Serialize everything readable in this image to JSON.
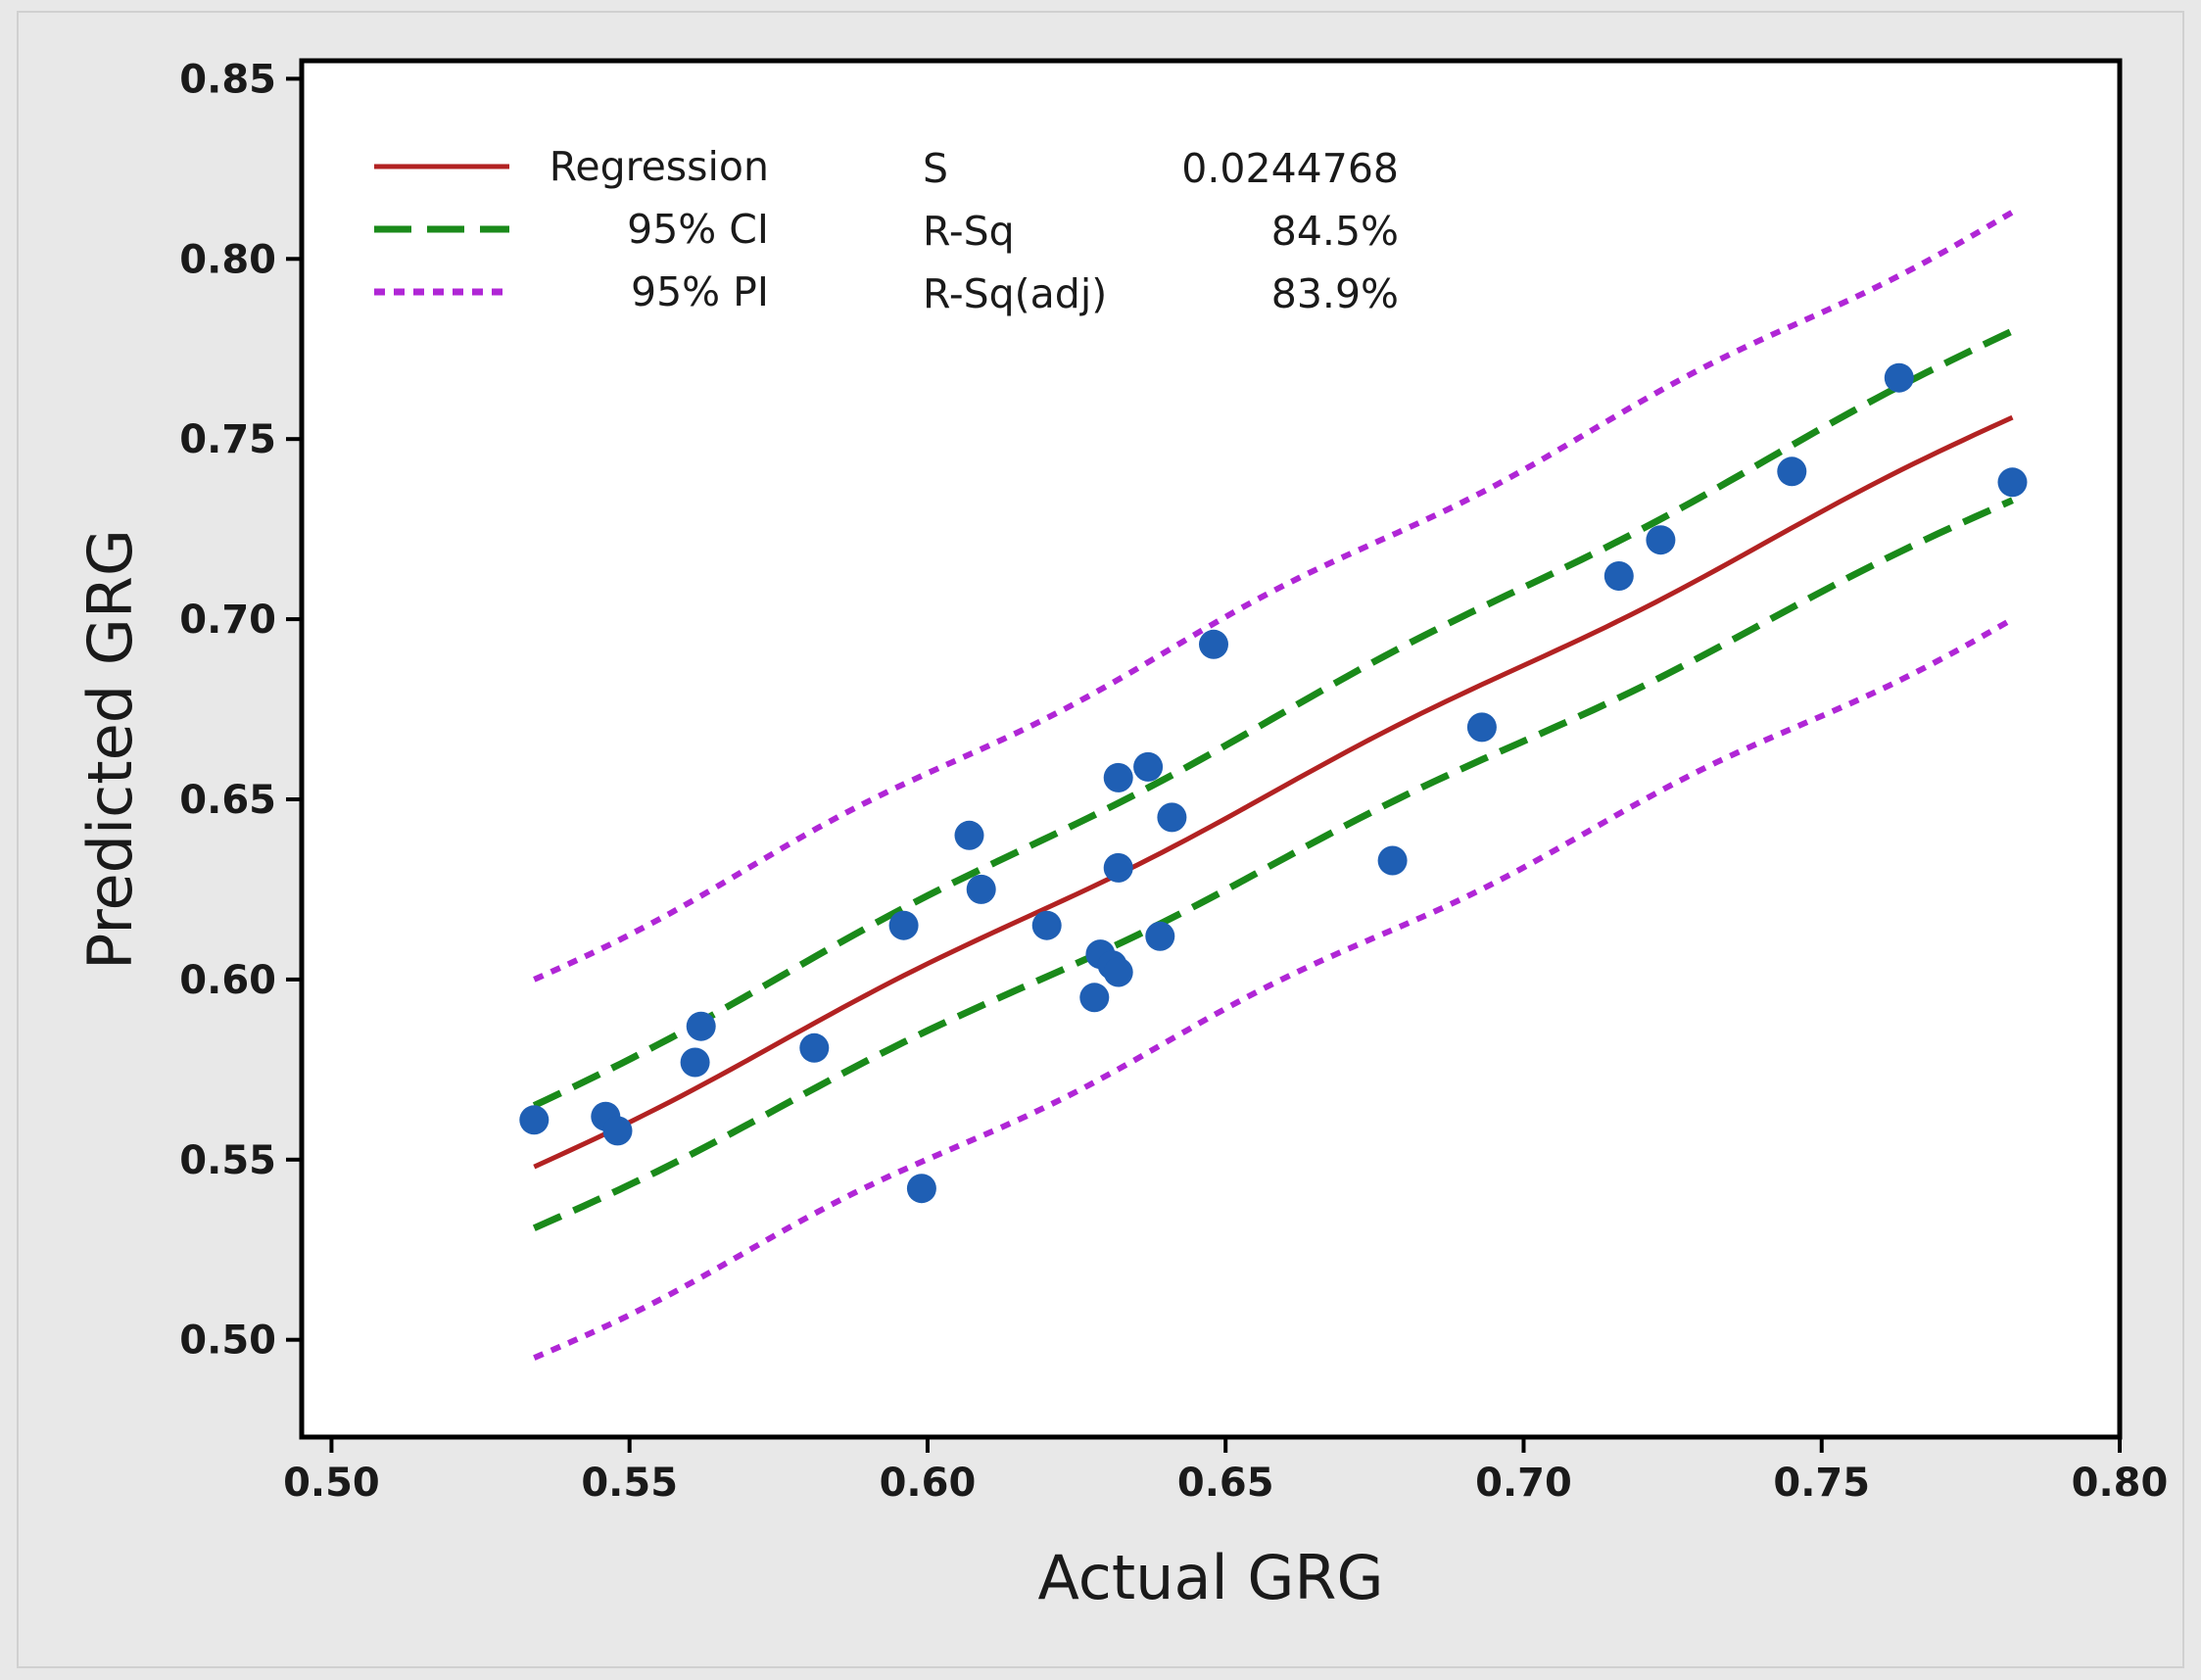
{
  "chart_data": {
    "type": "scatter",
    "xlabel": "Actual GRG",
    "ylabel": "Predicted GRG",
    "xlim": [
      0.495,
      0.8
    ],
    "ylim": [
      0.473,
      0.855
    ],
    "xticks": [
      "0.50",
      "0.55",
      "0.60",
      "0.65",
      "0.70",
      "0.75",
      "0.80"
    ],
    "yticks": [
      "0.50",
      "0.55",
      "0.60",
      "0.65",
      "0.70",
      "0.75",
      "0.80",
      "0.85"
    ],
    "colors": {
      "regression": "#b22222",
      "ci": "#1a8a1a",
      "pi": "#b026d6",
      "points": "#1f5fb4",
      "outer_bg": "#e8e8e8",
      "plot_bg": "#ffffff"
    },
    "legend": [
      {
        "key": "regression",
        "label": "Regression",
        "style": "solid"
      },
      {
        "key": "ci",
        "label": "95% CI",
        "style": "dashed"
      },
      {
        "key": "pi",
        "label": "95% PI",
        "style": "dotted"
      }
    ],
    "stats": [
      {
        "label": "S",
        "value": "0.0244768"
      },
      {
        "label": "R-Sq",
        "value": "84.5%"
      },
      {
        "label": "R-Sq(adj)",
        "value": "83.9%"
      }
    ],
    "fit": {
      "x_range": [
        0.534,
        0.782
      ],
      "regression": [
        0.548,
        0.756
      ],
      "ci_upper": [
        0.565,
        0.78
      ],
      "ci_lower": [
        0.531,
        0.733
      ],
      "pi_upper": [
        0.6,
        0.813
      ],
      "pi_lower": [
        0.495,
        0.7
      ]
    },
    "series": [
      {
        "name": "Observations",
        "points": [
          [
            0.534,
            0.561
          ],
          [
            0.546,
            0.562
          ],
          [
            0.548,
            0.558
          ],
          [
            0.561,
            0.577
          ],
          [
            0.562,
            0.587
          ],
          [
            0.581,
            0.581
          ],
          [
            0.596,
            0.615
          ],
          [
            0.599,
            0.542
          ],
          [
            0.607,
            0.64
          ],
          [
            0.609,
            0.625
          ],
          [
            0.62,
            0.615
          ],
          [
            0.628,
            0.595
          ],
          [
            0.629,
            0.607
          ],
          [
            0.631,
            0.604
          ],
          [
            0.632,
            0.602
          ],
          [
            0.632,
            0.631
          ],
          [
            0.632,
            0.656
          ],
          [
            0.637,
            0.659
          ],
          [
            0.639,
            0.612
          ],
          [
            0.641,
            0.645
          ],
          [
            0.648,
            0.693
          ],
          [
            0.678,
            0.633
          ],
          [
            0.693,
            0.67
          ],
          [
            0.716,
            0.712
          ],
          [
            0.723,
            0.722
          ],
          [
            0.745,
            0.741
          ],
          [
            0.763,
            0.767
          ],
          [
            0.782,
            0.738
          ]
        ]
      }
    ]
  }
}
